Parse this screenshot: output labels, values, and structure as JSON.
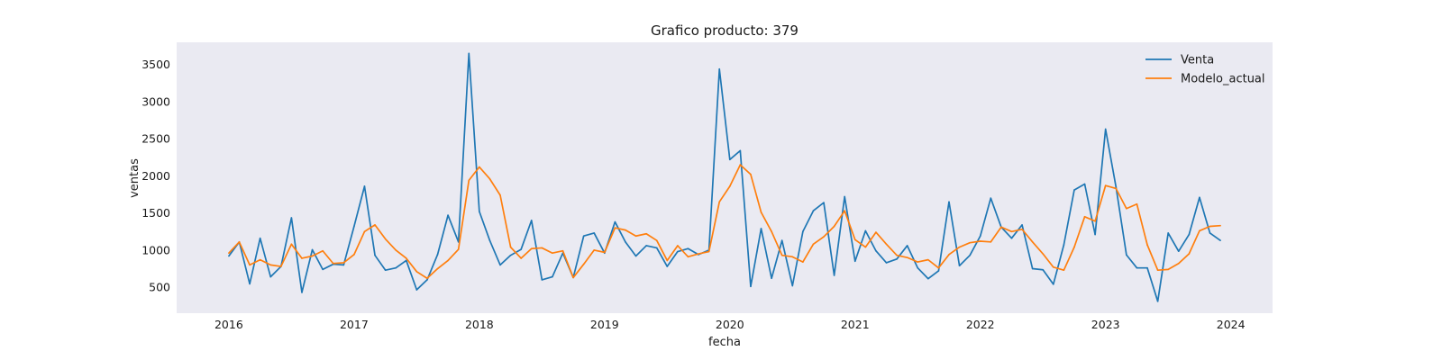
{
  "chart_data": {
    "type": "line",
    "title": "Grafico producto: 379",
    "xlabel": "fecha",
    "ylabel": "ventas",
    "x_start": "2016-01",
    "x_ticks": [
      "2016",
      "2017",
      "2018",
      "2019",
      "2020",
      "2021",
      "2022",
      "2023",
      "2024"
    ],
    "y_ticks": [
      500,
      1000,
      1500,
      2000,
      2500,
      3000,
      3500
    ],
    "xlim": [
      "2015-08",
      "2024-05"
    ],
    "ylim": [
      150,
      3800
    ],
    "grid": false,
    "legend_position": "top-right",
    "background": "#eaeaf2",
    "series": [
      {
        "name": "Venta",
        "color": "#1f77b4",
        "values": [
          920,
          1110,
          545,
          1160,
          640,
          780,
          1435,
          430,
          1005,
          740,
          810,
          800,
          1320,
          1860,
          930,
          730,
          760,
          860,
          465,
          600,
          940,
          1470,
          1110,
          3650,
          1520,
          1130,
          800,
          930,
          1010,
          1400,
          600,
          640,
          960,
          630,
          1190,
          1230,
          960,
          1380,
          1110,
          920,
          1060,
          1030,
          780,
          980,
          1020,
          940,
          1000,
          3440,
          2220,
          2340,
          510,
          1290,
          620,
          1130,
          520,
          1250,
          1530,
          1640,
          660,
          1720,
          850,
          1260,
          990,
          830,
          880,
          1060,
          760,
          615,
          720,
          1650,
          790,
          930,
          1190,
          1700,
          1310,
          1160,
          1340,
          750,
          735,
          540,
          1070,
          1810,
          1890,
          1210,
          2630,
          1850,
          935,
          760,
          760,
          310,
          1230,
          985,
          1210,
          1710,
          1230,
          1130
        ]
      },
      {
        "name": "Modelo_actual",
        "color": "#ff7f0e",
        "values": [
          960,
          1110,
          800,
          870,
          800,
          780,
          1080,
          890,
          920,
          990,
          820,
          830,
          940,
          1250,
          1340,
          1150,
          1000,
          890,
          710,
          620,
          750,
          860,
          1010,
          1940,
          2120,
          1960,
          1740,
          1040,
          890,
          1020,
          1030,
          960,
          990,
          630,
          810,
          1000,
          970,
          1300,
          1270,
          1190,
          1220,
          1130,
          860,
          1060,
          910,
          950,
          980,
          1650,
          1860,
          2150,
          2020,
          1510,
          1250,
          930,
          910,
          840,
          1080,
          1180,
          1320,
          1530,
          1140,
          1040,
          1240,
          1080,
          930,
          900,
          840,
          870,
          760,
          940,
          1040,
          1100,
          1120,
          1110,
          1310,
          1250,
          1280,
          1110,
          950,
          770,
          730,
          1040,
          1450,
          1390,
          1870,
          1830,
          1560,
          1620,
          1070,
          730,
          740,
          820,
          950,
          1260,
          1320,
          1330
        ]
      }
    ]
  }
}
